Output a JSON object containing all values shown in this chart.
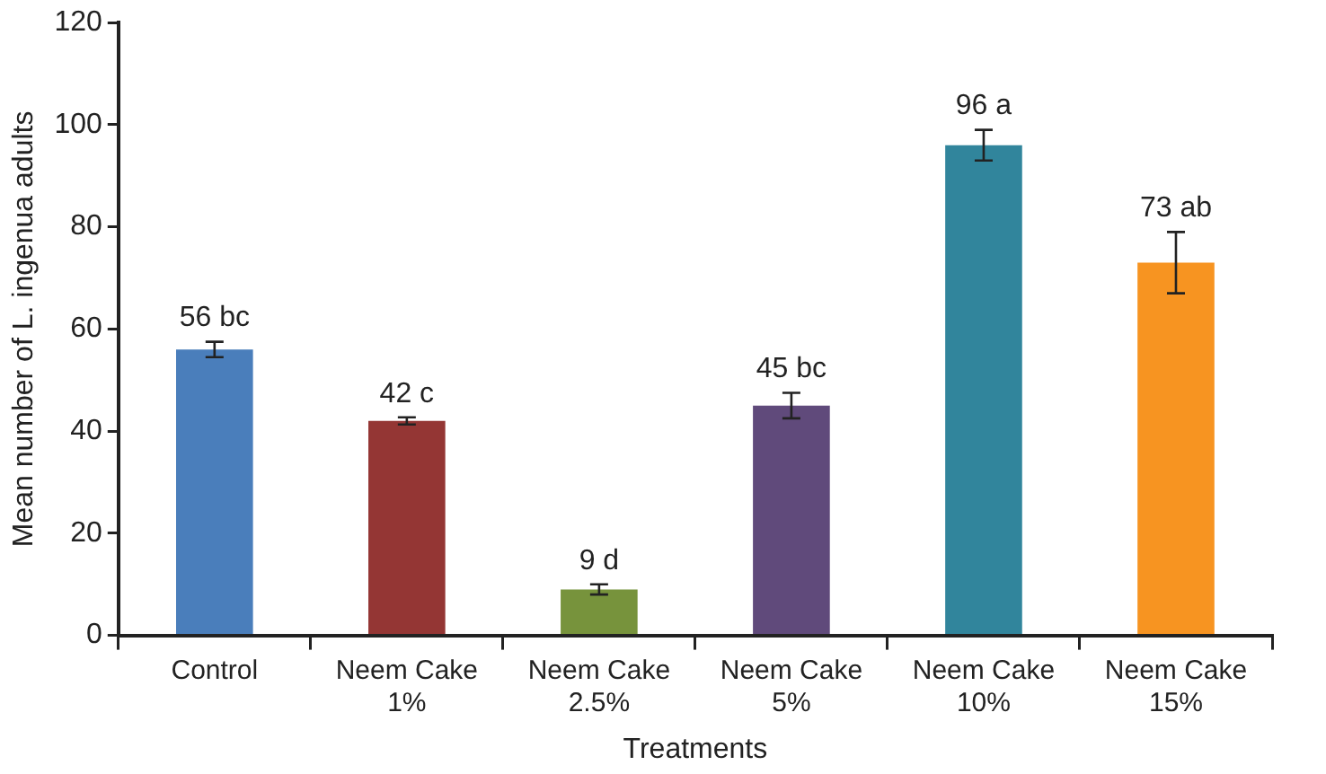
{
  "chart_data": {
    "type": "bar",
    "xlabel": "Treatments",
    "ylabel": "Mean number of L. ingenua adults",
    "categories": [
      "Control",
      "Neem Cake 1%",
      "Neem Cake 2.5%",
      "Neem Cake 5%",
      "Neem Cake 10%",
      "Neem Cake 15%"
    ],
    "values": [
      56,
      42,
      9,
      45,
      96,
      73
    ],
    "colors": [
      "#4a7ebb",
      "#943634",
      "#77933c",
      "#604a7b",
      "#31859c",
      "#f79421"
    ],
    "errors": [
      1.5,
      0.7,
      1,
      2.5,
      3,
      6
    ],
    "value_labels": [
      "56 bc",
      "42 c",
      "9 d",
      "45 bc",
      "96 a",
      "73 ab"
    ],
    "ylim": [
      0,
      120
    ],
    "yticks": [
      0,
      20,
      40,
      60,
      80,
      100,
      120
    ],
    "grid": false,
    "legend": false
  }
}
